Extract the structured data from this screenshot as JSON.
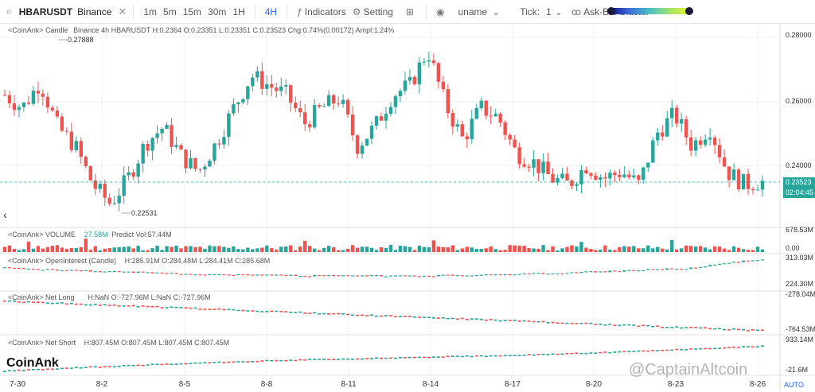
{
  "toolbar": {
    "symbol": "HBARUSDT",
    "exchange": "Binance",
    "close_glyph": "✕",
    "intervals": [
      "1m",
      "5m",
      "15m",
      "30m",
      "1H",
      "4H"
    ],
    "active_interval": "4H",
    "indicators_label": "Indicators",
    "setting_label": "Setting",
    "user_label": "uname",
    "tick_label": "Tick:",
    "tick_value": "1",
    "cluster_label": "Ask-Bid Cluster"
  },
  "main_pane": {
    "label_prefix": "<CoinAnk> Candle",
    "label_info": "Binance 4h HBARUSDT H:0.2364  O:0.23351  L:0.23351  C:0.23523  Chg:0.74%(0.00172)  Ampl:1.24%",
    "high_label": "0.27888",
    "low_label": "0.22531",
    "price_axis": [
      "0.28000",
      "0.26000",
      "0.24000"
    ],
    "last_price": "0.23523",
    "countdown": "02:04:45"
  },
  "volume_pane": {
    "label": "<CoinAnk> VOLUME",
    "value": "27.58M",
    "predict": "Predict Vol:57.44M",
    "axis": [
      "678.53M",
      "0.00"
    ]
  },
  "oi_pane": {
    "label": "<CoinAnk> OpenInterest (Candle)",
    "values": "H:285.91M  O:284.48M  L:284.41M  C:285.68M",
    "axis": [
      "313.03M",
      "224.30M"
    ]
  },
  "netlong_pane": {
    "label": "<CoinAnk> Net Long",
    "values": "H:NaN  O:-727.96M  L:NaN  C:-727.96M",
    "axis": [
      "-278.04M",
      "-764.53M"
    ]
  },
  "netshort_pane": {
    "label": "<CoinAnk> Net Short",
    "values": "H:807.45M  O:807.45M  L:807.45M  C:807.45M",
    "axis": [
      "933.14M",
      "-21.6M"
    ]
  },
  "x_axis": [
    "7-30",
    "8-2",
    "8-5",
    "8-8",
    "8-11",
    "8-14",
    "8-17",
    "8-20",
    "8-23",
    "8-26"
  ],
  "brand": "CoinAnk",
  "watermark": "@CaptainAltcoin",
  "auto_label": "AUTO",
  "colors": {
    "up": "#26a69a",
    "down": "#ef5350",
    "accent": "#2962ff"
  },
  "chart_data": {
    "type": "candlestick",
    "symbol": "HBARUSDT",
    "interval": "4H",
    "price_close_path": [
      0.262,
      0.258,
      0.266,
      0.252,
      0.246,
      0.234,
      0.228,
      0.236,
      0.247,
      0.252,
      0.243,
      0.238,
      0.247,
      0.258,
      0.268,
      0.265,
      0.262,
      0.253,
      0.258,
      0.261,
      0.246,
      0.252,
      0.262,
      0.265,
      0.276,
      0.259,
      0.248,
      0.258,
      0.255,
      0.244,
      0.241,
      0.236,
      0.234,
      0.24,
      0.236,
      0.238,
      0.234,
      0.25,
      0.256,
      0.246,
      0.252,
      0.238,
      0.234,
      0.2352
    ],
    "last_close": 0.23523,
    "volume_ylim": [
      0,
      678.53
    ],
    "open_interest_ylim": [
      224.3,
      313.03
    ],
    "net_long_ylim": [
      -764.53,
      -278.04
    ],
    "net_short_ylim": [
      -21.6,
      933.14
    ]
  }
}
